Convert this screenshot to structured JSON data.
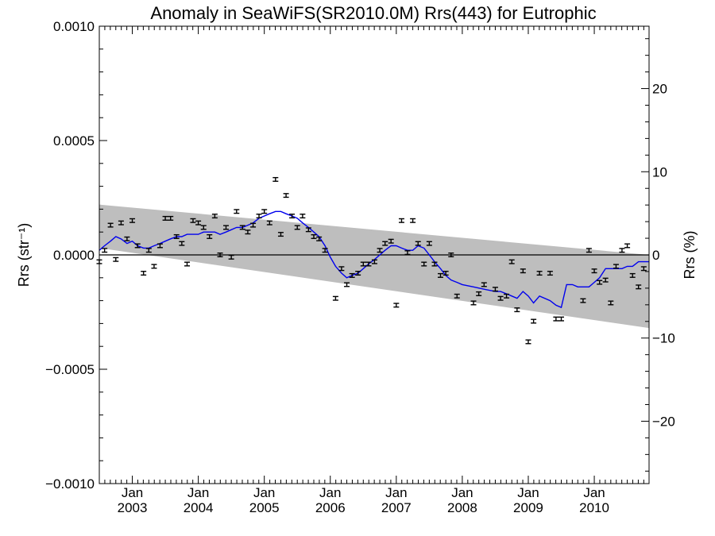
{
  "chart_data": {
    "type": "scatter",
    "title": "Anomaly in SeaWiFS(SR2010.0M) Rrs(443) for Eutrophic",
    "ylabel_left": "Rrs (str⁻¹)",
    "ylabel_right": "Rrs (%)",
    "xlim": [
      2002.5,
      2010.83
    ],
    "ylim": [
      -0.001,
      0.001
    ],
    "ylim_right": [
      -27.5,
      27.5
    ],
    "yticks_left": [
      "−0.0010",
      "−0.0005",
      "0.0000",
      "0.0005",
      "0.0010"
    ],
    "yticks_left_values": [
      -0.001,
      -0.0005,
      0.0,
      0.0005,
      0.001
    ],
    "yticks_right": [
      "−20",
      "−10",
      "0",
      "10",
      "20"
    ],
    "yticks_right_values": [
      -20,
      -10,
      0,
      10,
      20
    ],
    "xticks": [
      {
        "pos": 2003.0,
        "month": "Jan",
        "year": "2003"
      },
      {
        "pos": 2004.0,
        "month": "Jan",
        "year": "2004"
      },
      {
        "pos": 2005.0,
        "month": "Jan",
        "year": "2005"
      },
      {
        "pos": 2006.0,
        "month": "Jan",
        "year": "2006"
      },
      {
        "pos": 2007.0,
        "month": "Jan",
        "year": "2007"
      },
      {
        "pos": 2008.0,
        "month": "Jan",
        "year": "2008"
      },
      {
        "pos": 2009.0,
        "month": "Jan",
        "year": "2009"
      },
      {
        "pos": 2010.0,
        "month": "Jan",
        "year": "2010"
      }
    ],
    "zero_line": 0.0,
    "band": {
      "x": [
        2002.5,
        2010.83
      ],
      "upper": [
        0.00022,
        0.0
      ],
      "lower": [
        3e-05,
        -0.00032
      ],
      "color": "#bebebe"
    },
    "series": [
      {
        "kind": "points_with_error",
        "color": "#000000",
        "error": 8e-06,
        "points": [
          [
            2002.5,
            -3e-05
          ],
          [
            2002.58,
            2e-05
          ],
          [
            2002.67,
            0.00013
          ],
          [
            2002.75,
            -2e-05
          ],
          [
            2002.83,
            0.00014
          ],
          [
            2002.92,
            7e-05
          ],
          [
            2003.0,
            0.00015
          ],
          [
            2003.08,
            4e-05
          ],
          [
            2003.17,
            -8e-05
          ],
          [
            2003.25,
            2e-05
          ],
          [
            2003.33,
            -5e-05
          ],
          [
            2003.42,
            4e-05
          ],
          [
            2003.5,
            0.00016
          ],
          [
            2003.58,
            0.00016
          ],
          [
            2003.67,
            8e-05
          ],
          [
            2003.75,
            5e-05
          ],
          [
            2003.83,
            -4e-05
          ],
          [
            2003.92,
            0.00015
          ],
          [
            2004.0,
            0.00014
          ],
          [
            2004.08,
            0.00012
          ],
          [
            2004.17,
            8e-05
          ],
          [
            2004.25,
            0.00017
          ],
          [
            2004.33,
            0.0
          ],
          [
            2004.42,
            0.00012
          ],
          [
            2004.5,
            -1e-05
          ],
          [
            2004.58,
            0.00019
          ],
          [
            2004.67,
            0.00012
          ],
          [
            2004.75,
            0.0001
          ],
          [
            2004.83,
            0.00013
          ],
          [
            2004.92,
            0.00017
          ],
          [
            2005.0,
            0.00019
          ],
          [
            2005.08,
            0.00014
          ],
          [
            2005.17,
            0.00033
          ],
          [
            2005.25,
            9e-05
          ],
          [
            2005.33,
            0.00026
          ],
          [
            2005.42,
            0.00017
          ],
          [
            2005.5,
            0.00012
          ],
          [
            2005.58,
            0.00017
          ],
          [
            2005.67,
            0.00011
          ],
          [
            2005.75,
            8e-05
          ],
          [
            2005.83,
            7e-05
          ],
          [
            2005.92,
            2e-05
          ],
          [
            2006.08,
            -0.00019
          ],
          [
            2006.17,
            -6e-05
          ],
          [
            2006.25,
            -0.00013
          ],
          [
            2006.33,
            -9e-05
          ],
          [
            2006.42,
            -8e-05
          ],
          [
            2006.5,
            -4e-05
          ],
          [
            2006.58,
            -4e-05
          ],
          [
            2006.67,
            -3e-05
          ],
          [
            2006.75,
            2e-05
          ],
          [
            2006.83,
            5e-05
          ],
          [
            2006.92,
            6e-05
          ],
          [
            2007.0,
            -0.00022
          ],
          [
            2007.08,
            0.00015
          ],
          [
            2007.17,
            1e-05
          ],
          [
            2007.25,
            0.00015
          ],
          [
            2007.33,
            5e-05
          ],
          [
            2007.42,
            -4e-05
          ],
          [
            2007.5,
            5e-05
          ],
          [
            2007.58,
            -4e-05
          ],
          [
            2007.67,
            -9e-05
          ],
          [
            2007.75,
            -8e-05
          ],
          [
            2007.83,
            0.0
          ],
          [
            2007.92,
            -0.00018
          ],
          [
            2008.17,
            -0.00021
          ],
          [
            2008.25,
            -0.00017
          ],
          [
            2008.33,
            -0.00013
          ],
          [
            2008.5,
            -0.00015
          ],
          [
            2008.58,
            -0.00019
          ],
          [
            2008.67,
            -0.00018
          ],
          [
            2008.75,
            -3e-05
          ],
          [
            2008.83,
            -0.00024
          ],
          [
            2008.92,
            -7e-05
          ],
          [
            2009.0,
            -0.00038
          ],
          [
            2009.08,
            -0.00029
          ],
          [
            2009.17,
            -8e-05
          ],
          [
            2009.33,
            -8e-05
          ],
          [
            2009.42,
            -0.00028
          ],
          [
            2009.5,
            -0.00028
          ],
          [
            2009.83,
            -0.0002
          ],
          [
            2009.92,
            2e-05
          ],
          [
            2010.0,
            -7e-05
          ],
          [
            2010.08,
            -0.00012
          ],
          [
            2010.17,
            -0.00011
          ],
          [
            2010.25,
            -0.00021
          ],
          [
            2010.33,
            -5e-05
          ],
          [
            2010.42,
            2e-05
          ],
          [
            2010.5,
            4e-05
          ],
          [
            2010.58,
            -9e-05
          ],
          [
            2010.67,
            -0.00014
          ],
          [
            2010.75,
            -6e-05
          ]
        ]
      },
      {
        "kind": "line",
        "color": "#0000ee",
        "x": [
          2002.5,
          2002.58,
          2002.67,
          2002.75,
          2002.83,
          2002.92,
          2003.0,
          2003.08,
          2003.17,
          2003.25,
          2003.33,
          2003.42,
          2003.5,
          2003.58,
          2003.67,
          2003.75,
          2003.83,
          2003.92,
          2004.0,
          2004.08,
          2004.17,
          2004.25,
          2004.33,
          2004.42,
          2004.5,
          2004.58,
          2004.67,
          2004.75,
          2004.83,
          2004.92,
          2005.0,
          2005.08,
          2005.17,
          2005.25,
          2005.33,
          2005.42,
          2005.5,
          2005.58,
          2005.67,
          2005.75,
          2005.83,
          2005.92,
          2006.0,
          2006.08,
          2006.17,
          2006.25,
          2006.33,
          2006.42,
          2006.5,
          2006.58,
          2006.67,
          2006.75,
          2006.83,
          2006.92,
          2007.0,
          2007.08,
          2007.17,
          2007.25,
          2007.33,
          2007.42,
          2007.5,
          2007.58,
          2007.67,
          2007.75,
          2007.83,
          2007.92,
          2008.0,
          2008.17,
          2008.33,
          2008.5,
          2008.58,
          2008.67,
          2008.75,
          2008.83,
          2008.92,
          2009.0,
          2009.08,
          2009.17,
          2009.33,
          2009.42,
          2009.5,
          2009.58,
          2009.67,
          2009.75,
          2009.83,
          2009.92,
          2010.0,
          2010.08,
          2010.17,
          2010.25,
          2010.33,
          2010.42,
          2010.5,
          2010.58,
          2010.67,
          2010.75,
          2010.83
        ],
        "y": [
          2e-05,
          4e-05,
          6e-05,
          8e-05,
          7e-05,
          5e-05,
          6e-05,
          4e-05,
          3e-05,
          3e-05,
          4e-05,
          5e-05,
          6e-05,
          7e-05,
          8e-05,
          8e-05,
          9e-05,
          9e-05,
          9e-05,
          0.0001,
          0.0001,
          0.0001,
          9e-05,
          0.0001,
          0.00011,
          0.00012,
          0.00012,
          0.00013,
          0.00014,
          0.00016,
          0.00017,
          0.00018,
          0.00019,
          0.00019,
          0.00018,
          0.00017,
          0.00016,
          0.00014,
          0.00012,
          0.0001,
          8e-05,
          4e-05,
          -1e-05,
          -5e-05,
          -8e-05,
          -0.0001,
          -9e-05,
          -8e-05,
          -6e-05,
          -4e-05,
          -2e-05,
          0.0,
          2e-05,
          4e-05,
          4e-05,
          3e-05,
          2e-05,
          2e-05,
          4e-05,
          3e-05,
          0.0,
          -3e-05,
          -6e-05,
          -9e-05,
          -0.00011,
          -0.00012,
          -0.00013,
          -0.00014,
          -0.00015,
          -0.00016,
          -0.00016,
          -0.00017,
          -0.00018,
          -0.00019,
          -0.00016,
          -0.00018,
          -0.00021,
          -0.00018,
          -0.0002,
          -0.00022,
          -0.00023,
          -0.00013,
          -0.00013,
          -0.00014,
          -0.00014,
          -0.00014,
          -0.00012,
          -0.0001,
          -6e-05,
          -6e-05,
          -6e-05,
          -6e-05,
          -5e-05,
          -5e-05,
          -3e-05,
          -3e-05,
          -3e-05
        ]
      }
    ]
  }
}
